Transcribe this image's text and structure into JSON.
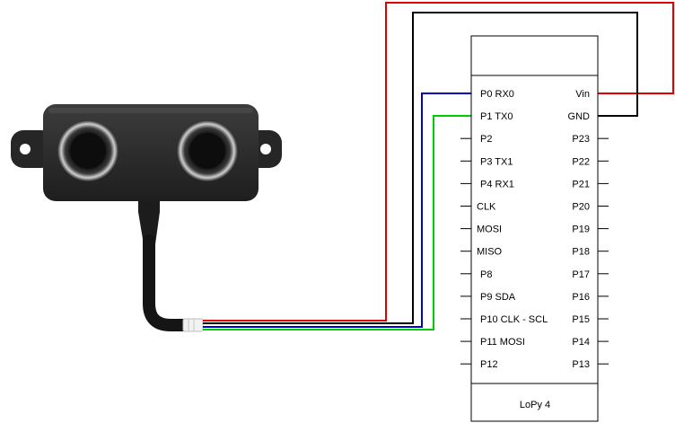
{
  "board": {
    "name": "LoPy 4",
    "left_pins": [
      "P0 RX0",
      "P1 TX0",
      "P2",
      "P3 TX1",
      "P4 RX1",
      "CLK",
      "MOSI",
      "MISO",
      "P8",
      "P9 SDA",
      "P10 CLK - SCL",
      "P11 MOSI",
      "P12"
    ],
    "right_pins": [
      "Vin",
      "GND",
      "P23",
      "P22",
      "P21",
      "P20",
      "P19",
      "P18",
      "P17",
      "P16",
      "P15",
      "P14",
      "P13"
    ]
  },
  "wires": [
    {
      "color": "#e00000",
      "from": "sensor",
      "to": "Vin"
    },
    {
      "color": "#000000",
      "from": "sensor",
      "to": "GND"
    },
    {
      "color": "#0000cc",
      "from": "sensor",
      "to": "P0 RX0"
    },
    {
      "color": "#00cc00",
      "from": "sensor",
      "to": "P1 TX0"
    }
  ]
}
